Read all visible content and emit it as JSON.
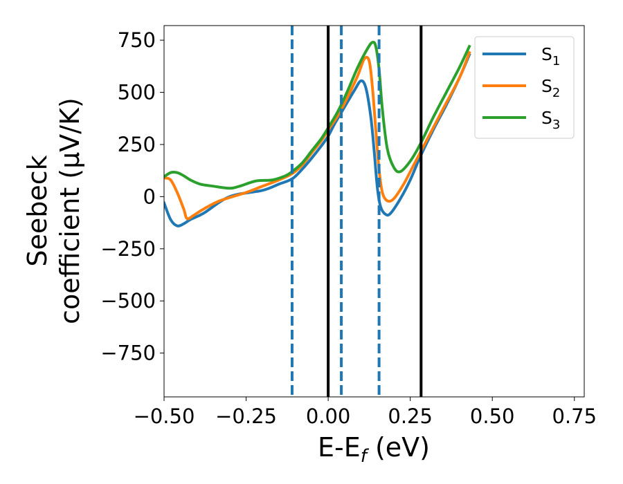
{
  "chart_data": {
    "type": "line",
    "xlabel": "E-E",
    "xlabel_sub": "f",
    "xlabel_unit": " (eV)",
    "ylabel_line1": "Seebeck",
    "ylabel_line2": "coefficient  (μV/K)",
    "xlim": [
      -0.5,
      0.78
    ],
    "ylim": [
      -960,
      820
    ],
    "xticks": [
      {
        "value": -0.5,
        "label": "−0.50"
      },
      {
        "value": -0.25,
        "label": "−0.25"
      },
      {
        "value": 0.0,
        "label": "0.00"
      },
      {
        "value": 0.25,
        "label": "0.25"
      },
      {
        "value": 0.5,
        "label": "0.50"
      },
      {
        "value": 0.75,
        "label": "0.75"
      }
    ],
    "yticks": [
      {
        "value": 750,
        "label": "750"
      },
      {
        "value": 500,
        "label": "500"
      },
      {
        "value": 250,
        "label": "250"
      },
      {
        "value": 0,
        "label": "0"
      },
      {
        "value": -250,
        "label": "−250"
      },
      {
        "value": -500,
        "label": "−500"
      },
      {
        "value": -750,
        "label": "−750"
      }
    ],
    "grid": false,
    "legend_position": "top-right",
    "series": [
      {
        "name": "S",
        "sub": "1",
        "color": "#1f77b4",
        "x": [
          -0.5,
          -0.48,
          -0.46,
          -0.44,
          -0.42,
          -0.38,
          -0.3,
          -0.2,
          -0.15,
          -0.11,
          -0.08,
          -0.05,
          -0.02,
          0.0,
          0.02,
          0.05,
          0.08,
          0.1,
          0.115,
          0.13,
          0.14,
          0.15,
          0.16,
          0.175,
          0.19,
          0.22,
          0.25,
          0.28,
          0.32,
          0.36,
          0.4,
          0.43
        ],
        "y": [
          -30,
          -110,
          -140,
          -130,
          -110,
          -80,
          0,
          30,
          60,
          85,
          130,
          185,
          245,
          290,
          350,
          430,
          510,
          555,
          520,
          380,
          220,
          40,
          -50,
          -85,
          -80,
          -10,
          80,
          190,
          320,
          440,
          570,
          680
        ]
      },
      {
        "name": "S",
        "sub": "2",
        "color": "#ff7f0e",
        "x": [
          -0.5,
          -0.48,
          -0.46,
          -0.44,
          -0.43,
          -0.41,
          -0.38,
          -0.33,
          -0.25,
          -0.2,
          -0.15,
          -0.11,
          -0.08,
          -0.05,
          -0.02,
          0.0,
          0.03,
          0.06,
          0.09,
          0.11,
          0.125,
          0.135,
          0.145,
          0.155,
          0.165,
          0.18,
          0.2,
          0.23,
          0.26,
          0.3,
          0.35,
          0.4,
          0.43
        ],
        "y": [
          90,
          80,
          20,
          -60,
          -105,
          -90,
          -60,
          -20,
          20,
          50,
          80,
          110,
          150,
          210,
          270,
          320,
          390,
          480,
          580,
          660,
          650,
          520,
          320,
          130,
          20,
          -20,
          -10,
          60,
          150,
          270,
          420,
          570,
          690
        ]
      },
      {
        "name": "S",
        "sub": "3",
        "color": "#2ca02c",
        "x": [
          -0.5,
          -0.48,
          -0.46,
          -0.44,
          -0.42,
          -0.39,
          -0.35,
          -0.3,
          -0.27,
          -0.22,
          -0.17,
          -0.13,
          -0.11,
          -0.08,
          -0.05,
          -0.02,
          0.0,
          0.03,
          0.06,
          0.09,
          0.12,
          0.135,
          0.145,
          0.155,
          0.165,
          0.18,
          0.2,
          0.22,
          0.25,
          0.28,
          0.32,
          0.36,
          0.4,
          0.43
        ],
        "y": [
          95,
          115,
          115,
          100,
          80,
          60,
          50,
          40,
          50,
          75,
          80,
          100,
          120,
          160,
          220,
          280,
          330,
          410,
          510,
          620,
          710,
          740,
          720,
          610,
          420,
          230,
          140,
          120,
          170,
          250,
          380,
          500,
          620,
          720
        ]
      }
    ],
    "vlines": [
      {
        "x": -0.11,
        "style": "dashed",
        "color": "#1f77b4"
      },
      {
        "x": 0.0,
        "style": "solid",
        "color": "#000000"
      },
      {
        "x": 0.04,
        "style": "dashed",
        "color": "#1f77b4"
      },
      {
        "x": 0.155,
        "style": "dashed",
        "color": "#1f77b4"
      },
      {
        "x": 0.283,
        "style": "solid",
        "color": "#000000"
      }
    ]
  }
}
